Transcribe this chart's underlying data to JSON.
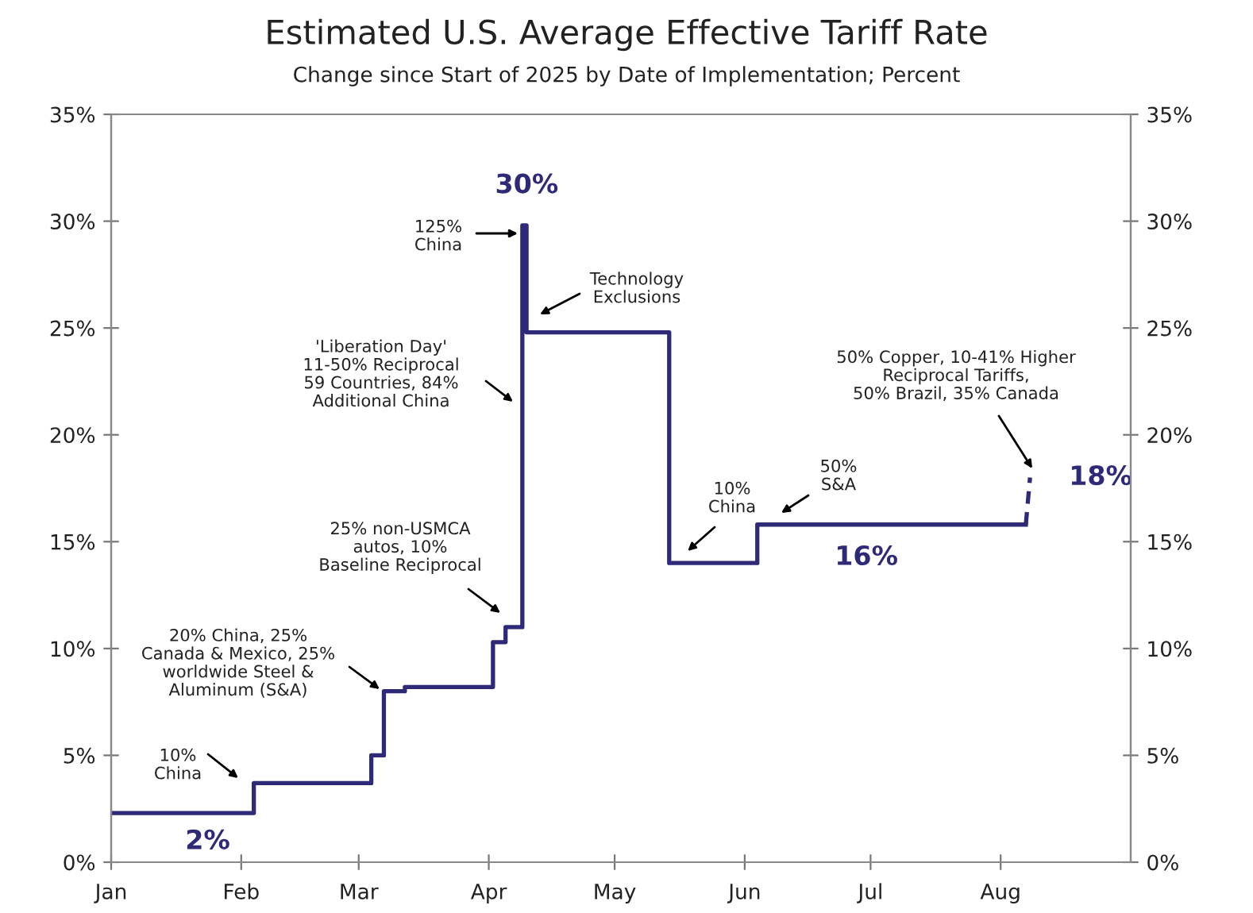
{
  "chart_data": {
    "type": "step",
    "title": "Estimated U.S. Average Effective Tariff Rate",
    "subtitle": "Change since Start of 2025 by Date of Implementation; Percent",
    "series": [
      {
        "color": "#2e2a78",
        "line_style": "solid",
        "x": [
          "2025-01-01",
          "2025-02-04",
          "2025-03-04",
          "2025-03-07",
          "2025-03-12",
          "2025-04-02",
          "2025-04-05",
          "2025-04-09",
          "2025-04-10",
          "2025-05-14",
          "2025-06-04",
          "2025-08-07"
        ],
        "values": [
          2.3,
          3.7,
          5.0,
          8.0,
          8.2,
          10.3,
          11.0,
          29.8,
          24.8,
          14.0,
          15.8,
          15.8
        ]
      },
      {
        "type": "line",
        "color": "#2e2a78",
        "line_style": "dashed",
        "x": [
          "2025-08-07",
          "2025-08-08"
        ],
        "values": [
          15.8,
          18.0
        ]
      }
    ],
    "xlim": [
      "2025-01-01",
      "2025-09-01"
    ],
    "xticks": [
      {
        "value": "2025-01-01",
        "label": "Jan"
      },
      {
        "value": "2025-02-01",
        "label": "Feb"
      },
      {
        "value": "2025-03-01",
        "label": "Mar"
      },
      {
        "value": "2025-04-01",
        "label": "Apr"
      },
      {
        "value": "2025-05-01",
        "label": "May"
      },
      {
        "value": "2025-06-01",
        "label": "Jun"
      },
      {
        "value": "2025-07-01",
        "label": "Jul"
      },
      {
        "value": "2025-08-01",
        "label": "Aug"
      }
    ],
    "ylim": [
      0,
      35
    ],
    "yticks": [
      {
        "value": 0,
        "label": "0%"
      },
      {
        "value": 5,
        "label": "5%"
      },
      {
        "value": 10,
        "label": "10%"
      },
      {
        "value": 15,
        "label": "15%"
      },
      {
        "value": 20,
        "label": "20%"
      },
      {
        "value": 25,
        "label": "25%"
      },
      {
        "value": 30,
        "label": "30%"
      },
      {
        "value": 35,
        "label": "35%"
      }
    ],
    "y2lim": [
      0,
      35
    ],
    "y2ticks": [
      {
        "value": 0,
        "label": "0%"
      },
      {
        "value": 5,
        "label": "5%"
      },
      {
        "value": 10,
        "label": "10%"
      },
      {
        "value": 15,
        "label": "15%"
      },
      {
        "value": 20,
        "label": "20%"
      },
      {
        "value": 25,
        "label": "25%"
      },
      {
        "value": 30,
        "label": "30%"
      },
      {
        "value": 35,
        "label": "35%"
      }
    ],
    "grid": false,
    "legend": false,
    "annotations": [
      {
        "text": "30%",
        "x": "2025-04-09",
        "y": 29.8
      },
      "125%\nChina",
      "Technology\nExclusions",
      "'Liberation Day'\n11-50% Reciprocal\n59 Countries, 84%\nAdditional China",
      "25% non-USMCA\nautos, 10%\nBaseline Reciprocal",
      "20% China, 25%\nCanada & Mexico, 25%\nworldwide Steel &\nAluminum (S&A)",
      "10%\nChina",
      {
        "text": "2%",
        "x": "2025-01-24",
        "y": 2.3
      },
      "10%\nChina",
      "50%\nS&A",
      {
        "text": "16%",
        "x": "2025-06-30",
        "y": 15.8
      },
      "50% Copper, 10-41% Higher\nReciprocal Tariffs,\n50% Brazil, 35% Canada",
      {
        "text": "18%",
        "x": "2025-08-08",
        "y": 18.0
      }
    ]
  }
}
